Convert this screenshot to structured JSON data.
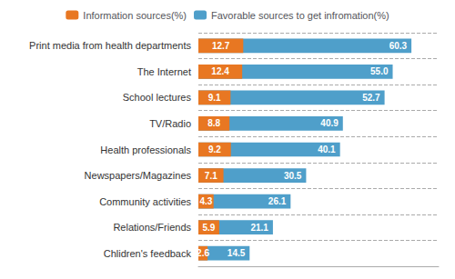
{
  "chart_data": {
    "type": "bar",
    "orientation": "horizontal",
    "categories": [
      "Print media from health departments",
      "The Internet",
      "School lectures",
      "TV/Radio",
      "Health professionals",
      "Newspapers/Magazines",
      "Community activities",
      "Relations/Friends",
      "Chlidren's feedback"
    ],
    "series": [
      {
        "name": "Information sources(%)",
        "color": "#E87722",
        "values": [
          12.7,
          12.4,
          9.1,
          8.8,
          9.2,
          7.1,
          4.3,
          5.9,
          2.6
        ]
      },
      {
        "name": "Favorable sources to get infromation(%)",
        "color": "#4F9FCA",
        "values": [
          60.3,
          55.0,
          52.7,
          40.9,
          40.1,
          30.5,
          26.1,
          21.1,
          14.5
        ],
        "value_labels": [
          "60.3",
          "55.0",
          "52.7",
          "40.9",
          "40.1",
          "30.5",
          "26.1",
          "21.1",
          "14.5"
        ]
      }
    ],
    "xlim": [
      0,
      68
    ],
    "tick_labels": "y",
    "grid": true,
    "legend": "top",
    "data_labels": true
  }
}
